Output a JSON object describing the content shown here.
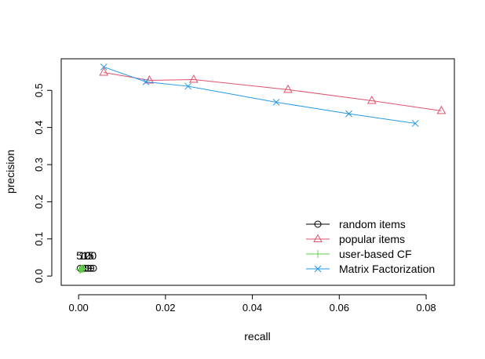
{
  "chart_data": {
    "type": "line",
    "title": "",
    "xlabel": "recall",
    "ylabel": "precision",
    "xlim": [
      -0.004,
      0.0865
    ],
    "ylim": [
      -0.025,
      0.585
    ],
    "xticks": [
      0.0,
      0.02,
      0.04,
      0.06,
      0.08
    ],
    "xtick_labels": [
      "0.00",
      "0.02",
      "0.04",
      "0.06",
      "0.08"
    ],
    "yticks": [
      0.0,
      0.1,
      0.2,
      0.3,
      0.4,
      0.5
    ],
    "ytick_labels": [
      "0.0",
      "0.1",
      "0.2",
      "0.3",
      "0.4",
      "0.5"
    ],
    "grid": false,
    "legend_position": "bottom-right",
    "series": [
      {
        "name": "random items",
        "color": "#000000",
        "marker": "circle",
        "x": [
          0.0004,
          0.001,
          0.0016,
          0.0022,
          0.0028,
          0.0034
        ],
        "y": [
          0.021,
          0.021,
          0.021,
          0.021,
          0.021,
          0.021
        ]
      },
      {
        "name": "popular items",
        "color": "#DF536B",
        "marker": "triangle",
        "x": [
          0.0058,
          0.0163,
          0.0265,
          0.0482,
          0.0675,
          0.0835
        ],
        "y": [
          0.548,
          0.527,
          0.529,
          0.502,
          0.472,
          0.445
        ]
      },
      {
        "name": "user-based CF",
        "color": "#61D04F",
        "marker": "plus",
        "x": [
          0.0002,
          0.0004,
          0.0006,
          0.0008,
          0.001,
          0.0012
        ],
        "y": [
          0.018,
          0.018,
          0.019,
          0.019,
          0.02,
          0.02
        ]
      },
      {
        "name": "Matrix Factorization",
        "color": "#2297E6",
        "marker": "cross",
        "x": [
          0.0058,
          0.0155,
          0.0252,
          0.0455,
          0.0622,
          0.0775
        ],
        "y": [
          0.563,
          0.523,
          0.511,
          0.468,
          0.437,
          0.411
        ]
      }
    ],
    "annotations": [
      "5",
      "10",
      "15",
      "20"
    ]
  }
}
